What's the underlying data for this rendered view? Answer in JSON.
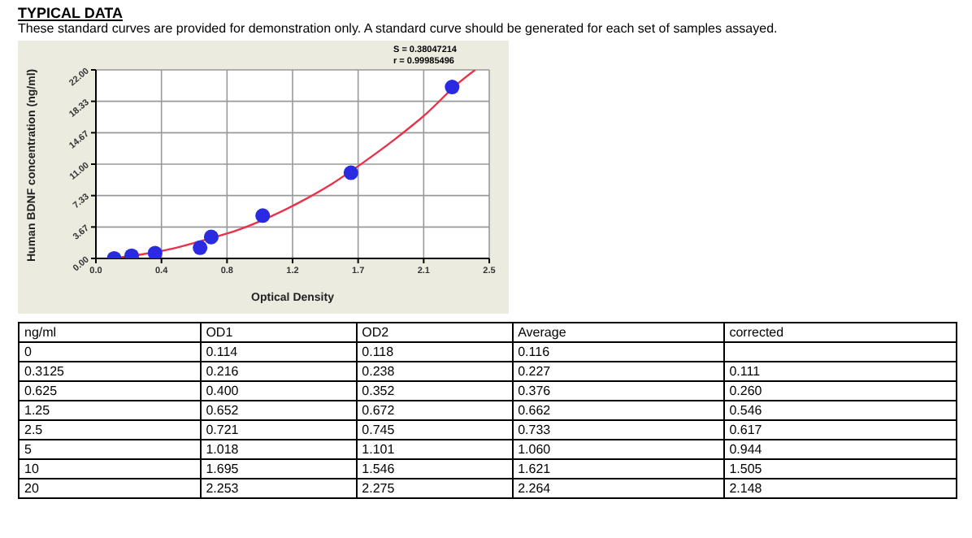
{
  "chart_data": [
    {
      "type": "scatter",
      "title": "TYPICAL DATA",
      "subtitle": "These standard curves are provided for demonstration only. A standard curve should be generated for each set of samples assayed.",
      "xlabel": "Optical Density",
      "ylabel": "Human BDNF concentration (ng/ml)",
      "annotations": [
        "S = 0.38047214",
        "r = 0.99985496"
      ],
      "xlim": [
        0,
        2.5
      ],
      "xticks": [
        {
          "value": 0,
          "label": "0.0"
        },
        {
          "value": 0.4167,
          "label": "0.4"
        },
        {
          "value": 0.8333,
          "label": "0.8"
        },
        {
          "value": 1.25,
          "label": "1.2"
        },
        {
          "value": 1.6667,
          "label": "1.7"
        },
        {
          "value": 2.0833,
          "label": "2.1"
        },
        {
          "value": 2.5,
          "label": "2.5"
        }
      ],
      "ylim": [
        0,
        22
      ],
      "yticks": [
        {
          "value": 0,
          "label": "0.00"
        },
        {
          "value": 3.667,
          "label": "3.67"
        },
        {
          "value": 7.333,
          "label": "7.33"
        },
        {
          "value": 11,
          "label": "11.00"
        },
        {
          "value": 14.667,
          "label": "14.67"
        },
        {
          "value": 18.333,
          "label": "18.33"
        },
        {
          "value": 22,
          "label": "22.00"
        }
      ],
      "grid": true,
      "series": [
        {
          "type": "scatter",
          "marker": "circle",
          "color": "#2a2ae0",
          "x": [
            0.116,
            0.227,
            0.376,
            0.662,
            0.733,
            1.06,
            1.621,
            2.264
          ],
          "values": [
            0,
            0.3125,
            0.625,
            1.25,
            2.5,
            5,
            10,
            20
          ]
        },
        {
          "type": "line",
          "marker": "none",
          "color": "#e8324a",
          "x": [
            0.1,
            0.3,
            0.5,
            0.7,
            0.9,
            1.1,
            1.3,
            1.5,
            1.7,
            1.9,
            2.1,
            2.3,
            2.41
          ],
          "values": [
            0,
            0.5,
            1.2,
            2.2,
            3.3,
            4.8,
            6.6,
            8.7,
            11.2,
            13.9,
            16.9,
            20.4,
            22
          ]
        }
      ]
    },
    {
      "type": "other",
      "categories": [
        "ng/ml",
        "OD1",
        "OD2",
        "Average",
        "corrected"
      ],
      "cell_labels": [
        [
          "0",
          "0.114",
          "0.118",
          "0.116",
          null
        ],
        [
          "0.3125",
          "0.216",
          "0.238",
          "0.227",
          "0.111"
        ],
        [
          "0.625",
          "0.400",
          "0.352",
          "0.376",
          "0.260"
        ],
        [
          "1.25",
          "0.652",
          "0.672",
          "0.662",
          "0.546"
        ],
        [
          "2.5",
          "0.721",
          "0.745",
          "0.733",
          "0.617"
        ],
        [
          "5",
          "1.018",
          "1.101",
          "1.060",
          "0.944"
        ],
        [
          "10",
          "1.695",
          "1.546",
          "1.621",
          "1.505"
        ],
        [
          "20",
          "2.253",
          "2.275",
          "2.264",
          "2.148"
        ]
      ]
    }
  ]
}
